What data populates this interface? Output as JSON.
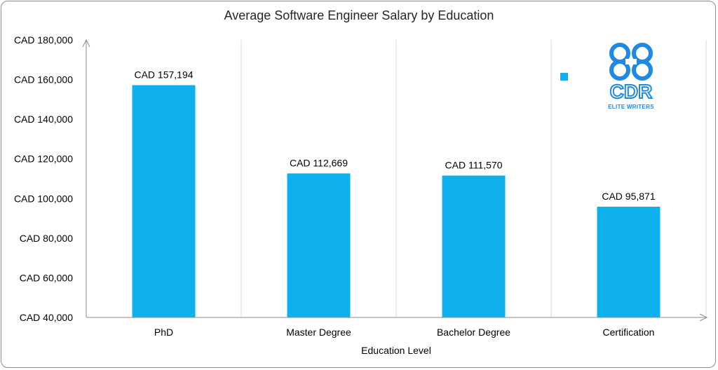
{
  "chart_data": {
    "type": "bar",
    "title": "Average Software Engineer Salary by Education",
    "xlabel": "Education Level",
    "ylabel": "",
    "categories": [
      "PhD",
      "Master Degree",
      "Bachelor Degree",
      "Certification"
    ],
    "values": [
      157194,
      112669,
      111570,
      95871
    ],
    "data_labels": [
      "CAD 157,194",
      "CAD 112,669",
      "CAD 111,570",
      "CAD 95,871"
    ],
    "ylim": [
      40000,
      180000
    ],
    "yticks": [
      40000,
      60000,
      80000,
      100000,
      120000,
      140000,
      160000,
      180000
    ],
    "ytick_labels": [
      "CAD 40,000",
      "CAD 60,000",
      "CAD 80,000",
      "CAD 100,000",
      "CAD 120,000",
      "CAD 140,000",
      "CAD 160,000",
      "CAD 180,000"
    ],
    "grid": "vertical",
    "bar_color": "#0fb0ee",
    "legend_position": "top-right"
  },
  "logo": {
    "text": "CDR",
    "subtitle": "ELITE WRITERS",
    "color": "#1e88e5"
  }
}
